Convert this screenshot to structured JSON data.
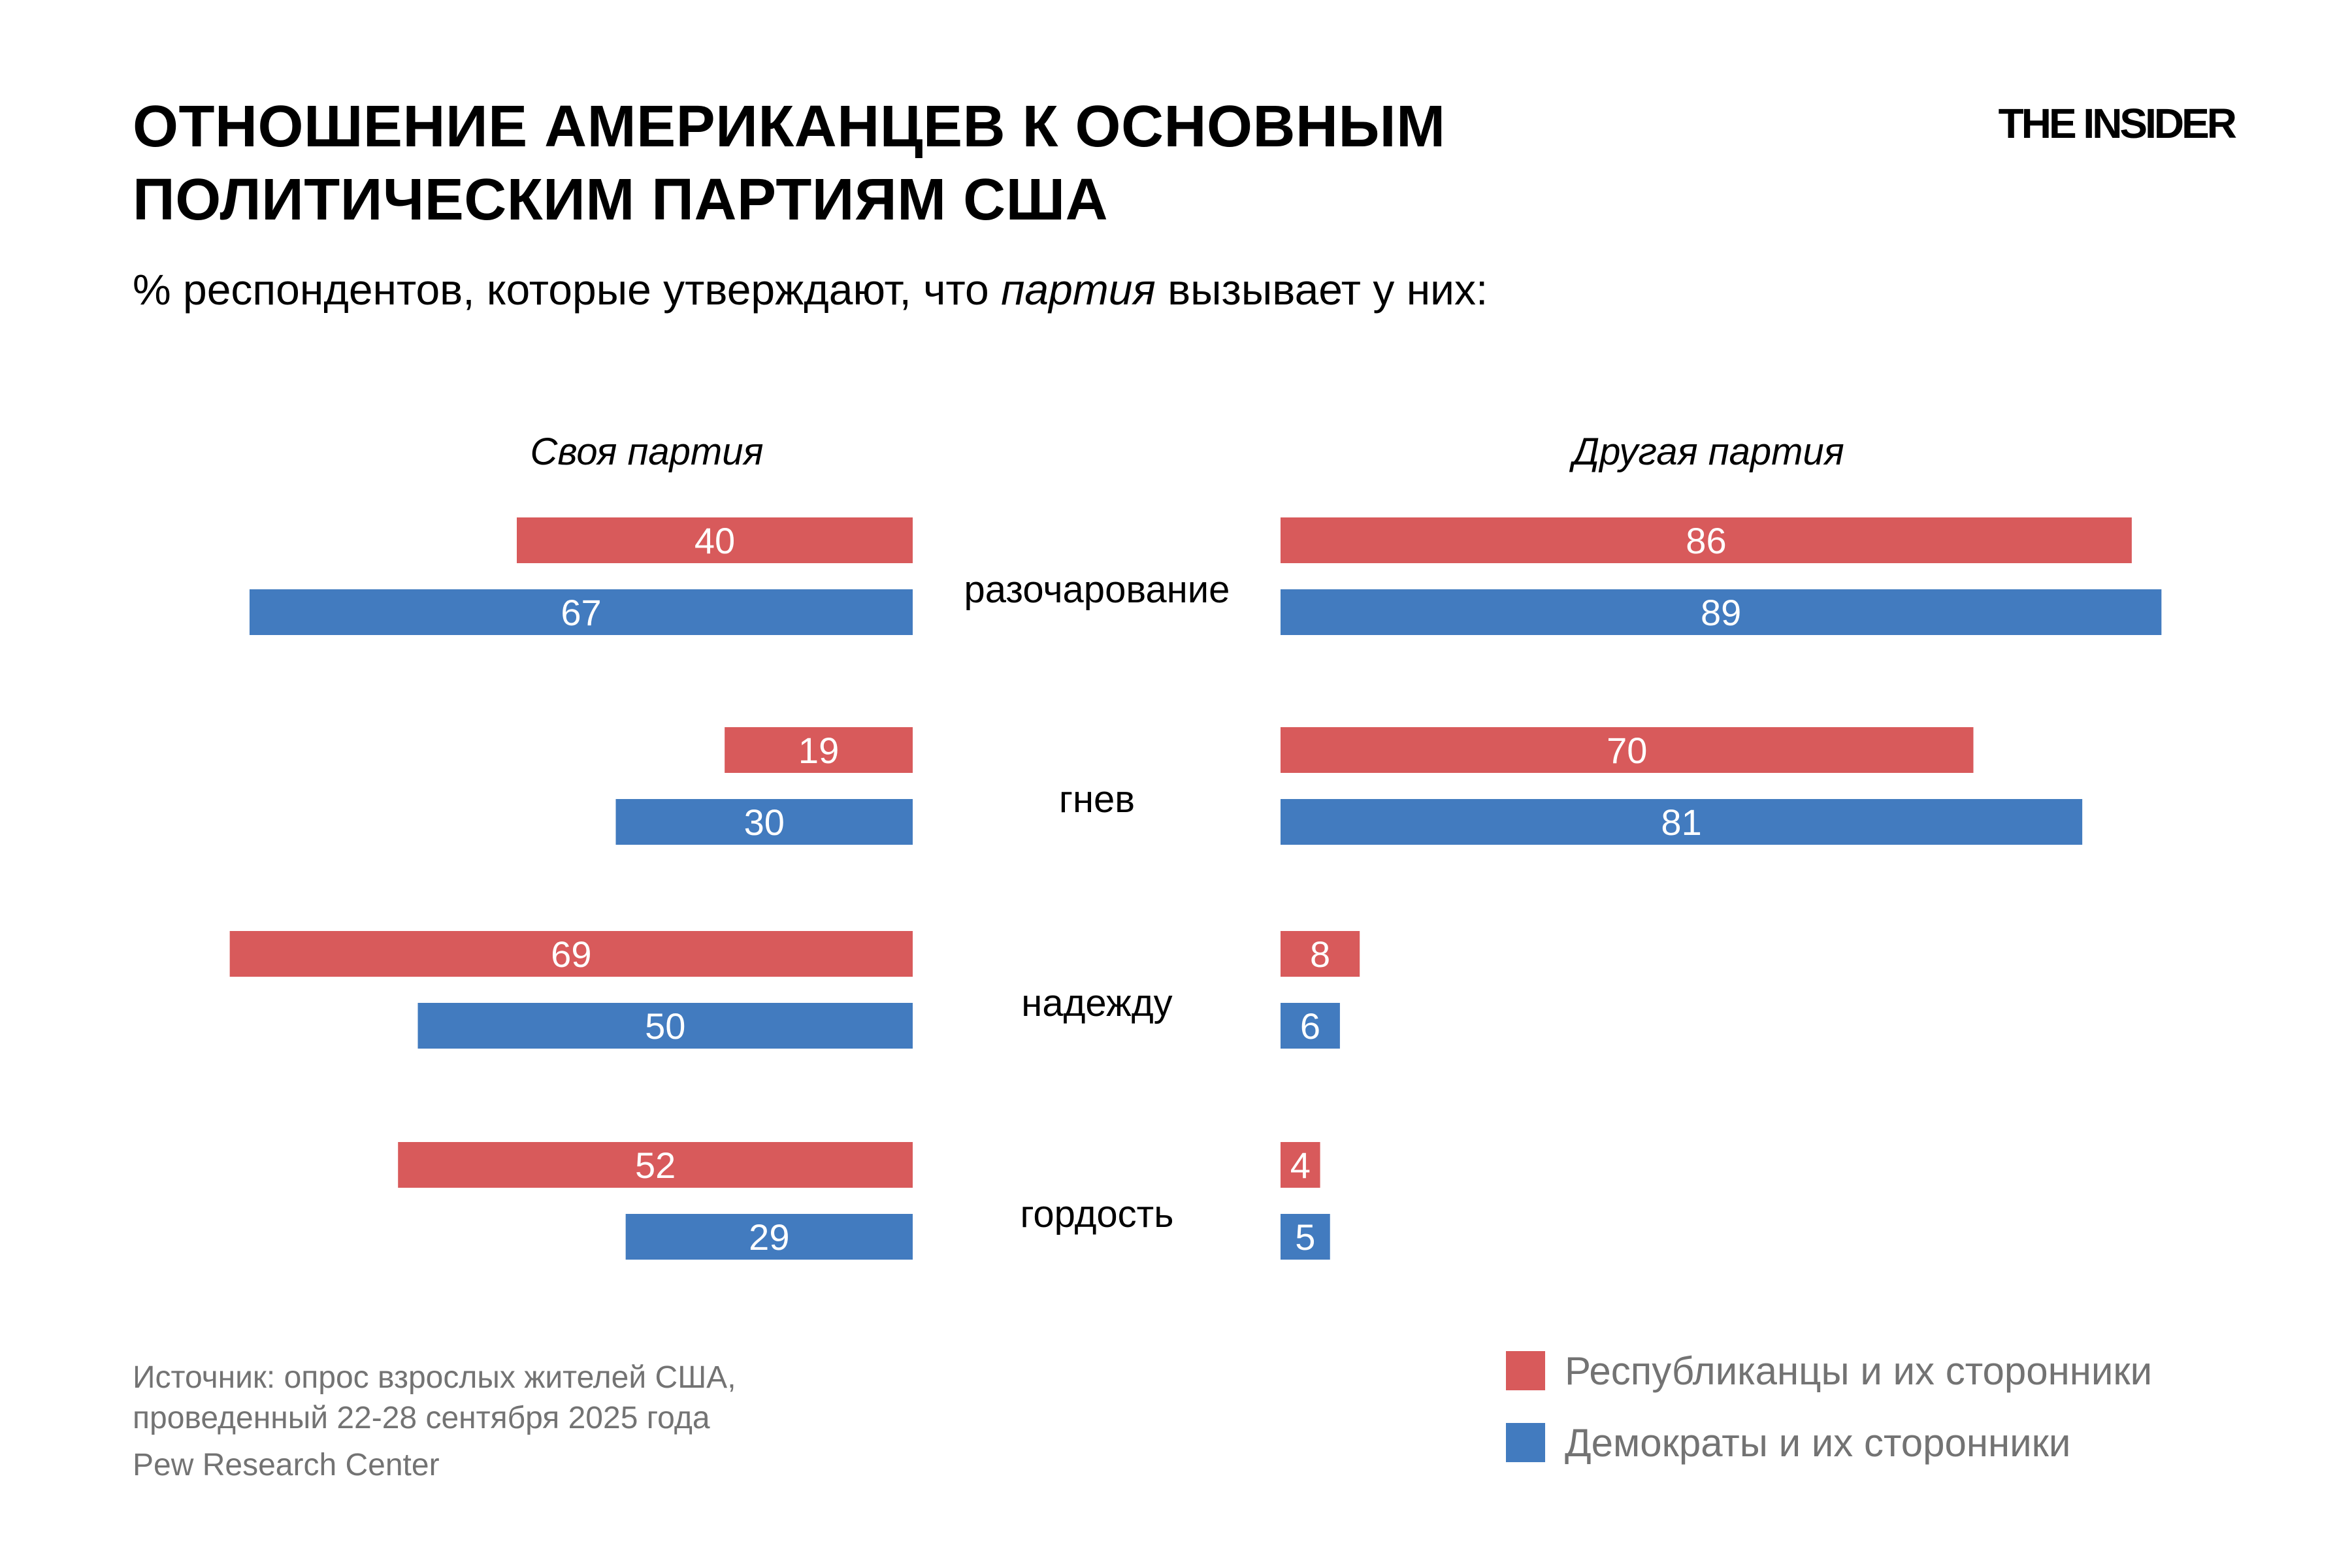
{
  "header": {
    "title_line1": "ОТНОШЕНИЕ АМЕРИКАНЦЕВ К ОСНОВНЫМ",
    "title_line2": "ПОЛИТИЧЕСКИМ ПАРТИЯМ США",
    "subtitle_before": "% респондентов, которые утверждают, что ",
    "subtitle_italic": "партия",
    "subtitle_after": " вызывает у них:",
    "logo": "THE INSIDER"
  },
  "colors": {
    "republicans": "#d85a5b",
    "democrats": "#427bbf"
  },
  "chart_data": {
    "type": "bar",
    "orientation": "horizontal-butterfly",
    "categories": [
      "разочарование",
      "гнев",
      "надежду",
      "гордость"
    ],
    "panels": [
      {
        "name": "Своя партия",
        "series": [
          {
            "name": "Республиканцы и их сторонники",
            "values": [
              40,
              19,
              69,
              52
            ]
          },
          {
            "name": "Демократы и их сторонники",
            "values": [
              67,
              30,
              50,
              29
            ]
          }
        ]
      },
      {
        "name": "Другая партия",
        "series": [
          {
            "name": "Республиканцы и их сторонники",
            "values": [
              86,
              70,
              8,
              4
            ]
          },
          {
            "name": "Демократы и их сторонники",
            "values": [
              89,
              81,
              6,
              5
            ]
          }
        ]
      }
    ],
    "xlim": [
      0,
      100
    ],
    "grid": false,
    "legend_position": "bottom-right"
  },
  "footer": {
    "source_line1": "Источник: опрос взрослых жителей США,",
    "source_line2": "проведенный 22-28 сентября 2025 года",
    "organization": "Pew Research Center"
  },
  "legend": {
    "republicans": "Республиканцы и их сторонники",
    "democrats": "Демократы и их сторонники"
  }
}
